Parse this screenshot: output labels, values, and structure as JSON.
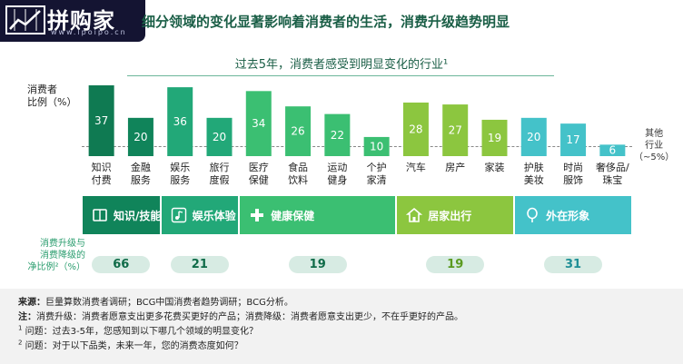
{
  "logo": {
    "text": "拼购家",
    "url": "www.ipoipo.cn"
  },
  "headline": "细分领域的变化显著影响着消费者的生活，消费升级趋势明显",
  "subtitle": "过去5年，消费者感受到明显变化的行业¹",
  "other_label": [
    "其他",
    "行业",
    "（~5%）"
  ],
  "colors": {
    "knowledge_dark": "#0f7a52",
    "knowledge_group": "#10845a",
    "entertainment": "#22a878",
    "health": "#3bbf72",
    "home": "#8cc63f",
    "appearance": "#44c2c9",
    "pill_bg": "#d7ebe3"
  },
  "chart_data": {
    "type": "bar",
    "ylabel": [
      "消费者",
      "比例（%）"
    ],
    "reference_line": 5,
    "categories": [
      [
        "知识",
        "付费"
      ],
      [
        "金融",
        "服务"
      ],
      [
        "娱乐",
        "服务"
      ],
      [
        "旅行",
        "度假"
      ],
      [
        "医疗",
        "保健"
      ],
      [
        "食品",
        "饮料"
      ],
      [
        "运动",
        "健身"
      ],
      [
        "个护",
        "家清"
      ],
      [
        "汽车"
      ],
      [
        "房产"
      ],
      [
        "家装"
      ],
      [
        "护肤",
        "美妆"
      ],
      [
        "时尚",
        "服饰"
      ],
      [
        "奢侈品/",
        "珠宝"
      ]
    ],
    "values": [
      37,
      20,
      36,
      20,
      34,
      26,
      22,
      10,
      28,
      27,
      19,
      20,
      17,
      6
    ],
    "groups": [
      {
        "title": "知识/技能",
        "net": "66",
        "indices": [
          0,
          1
        ],
        "icon": "book-icon"
      },
      {
        "title": "娱乐体验",
        "net": "21",
        "indices": [
          2,
          3
        ],
        "icon": "music-note-icon"
      },
      {
        "title": "健康保健",
        "net": "19",
        "indices": [
          4,
          5,
          6,
          7
        ],
        "icon": "medical-cross-icon"
      },
      {
        "title": "居家出行",
        "net": "19",
        "indices": [
          8,
          9,
          10
        ],
        "icon": "house-icon"
      },
      {
        "title": "外在形象",
        "net": "31",
        "indices": [
          11,
          12,
          13
        ],
        "icon": "mirror-icon"
      }
    ],
    "net_label": [
      "消费升级与",
      "消费降级的",
      "净比例²（%）"
    ]
  },
  "notes": {
    "source_label": "来源：",
    "source_text": "巨量算数消费者调研；BCG中国消费者趋势调研；BCG分析。",
    "note_label": "注：",
    "note_text": "消费升级：消费者愿意支出更多花费买更好的产品；消费降级：消费者愿意支出更少，不在乎更好的产品。",
    "q1_mark": "1",
    "q1_text": "问题：过去3-5年，您感知到以下哪几个领域的明显变化？",
    "q2_mark": "2",
    "q2_text": "问题：对于以下品类，未来一年，您的消费态度如何？"
  }
}
